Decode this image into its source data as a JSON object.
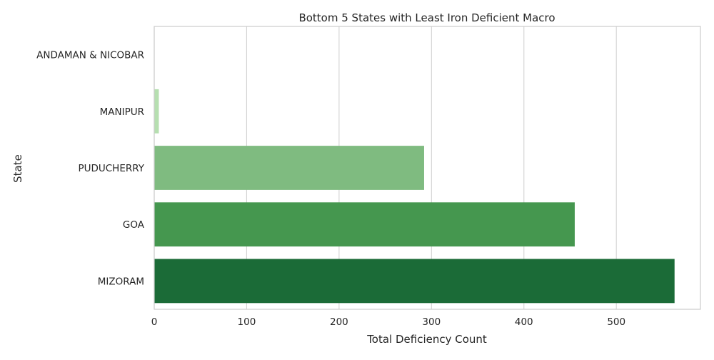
{
  "chart_data": {
    "type": "bar",
    "orientation": "horizontal",
    "title": "Bottom 5 States with Least Iron Deficient Macro",
    "xlabel": "Total Deficiency Count",
    "ylabel": "State",
    "categories": [
      "ANDAMAN & NICOBAR",
      "MANIPUR",
      "PUDUCHERRY",
      "GOA",
      "MIZORAM"
    ],
    "values": [
      0,
      5,
      292,
      455,
      563
    ],
    "xlim": [
      0,
      591
    ],
    "xticks": [
      0,
      100,
      200,
      300,
      400,
      500
    ],
    "grid": "x",
    "bar_colors": [
      "#e5f5e0",
      "#b6dfb0",
      "#7fbb80",
      "#45974f",
      "#1b6b37"
    ]
  }
}
